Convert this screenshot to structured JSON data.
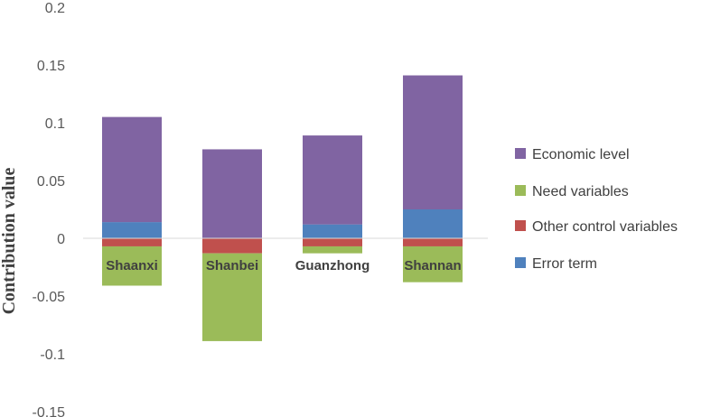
{
  "chart_data": {
    "type": "bar",
    "stacked": true,
    "categories": [
      "Shaanxi",
      "Shanbei",
      "Guanzhong",
      "Shannan"
    ],
    "ylabel": "Contribution value",
    "ylim": [
      -0.15,
      0.2
    ],
    "yticks": [
      0.2,
      0.15,
      0.1,
      0.05,
      0,
      -0.05,
      -0.1,
      -0.15
    ],
    "ytick_labels": [
      "0.2",
      "0.15",
      "0.1",
      "0.05",
      "0",
      "-0.05",
      "-0.1",
      "-0.15"
    ],
    "grid": false,
    "legend_position": "right",
    "series": [
      {
        "name": "Economic level",
        "color": "#8064A2",
        "values": [
          0.091,
          0.077,
          0.077,
          0.116
        ]
      },
      {
        "name": "Need variables",
        "color": "#9BBB59",
        "values": [
          -0.034,
          -0.076,
          -0.006,
          -0.031
        ]
      },
      {
        "name": "Other control variables",
        "color": "#C0504D",
        "values": [
          -0.007,
          -0.013,
          -0.007,
          -0.007
        ]
      },
      {
        "name": "Error term",
        "color": "#4F81BD",
        "values": [
          0.014,
          0.0,
          0.012,
          0.025
        ]
      }
    ]
  }
}
